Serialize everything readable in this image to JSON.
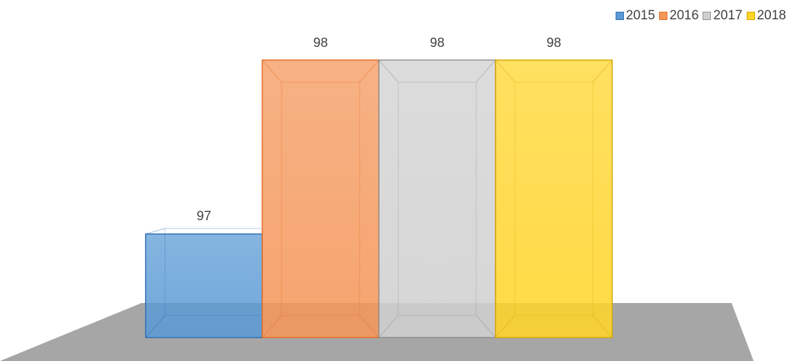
{
  "chart_data": {
    "type": "bar",
    "style": "3d-clustered",
    "categories": [
      ""
    ],
    "series": [
      {
        "name": "2015",
        "values": [
          97
        ],
        "color": "#5B9BD5",
        "stroke": "#2E6DB4"
      },
      {
        "name": "2016",
        "values": [
          98
        ],
        "color": "#F4975A",
        "stroke": "#E46C24"
      },
      {
        "name": "2017",
        "values": [
          98
        ],
        "color": "#D0D0D0",
        "stroke": "#8F8F8F"
      },
      {
        "name": "2018",
        "values": [
          98
        ],
        "color": "#FFD52A",
        "stroke": "#D4A800"
      }
    ],
    "data_labels": [
      "97",
      "98",
      "98",
      "98"
    ],
    "ylim": [
      96,
      98
    ],
    "grid": false,
    "legend_position": "top-right",
    "floor_color": "#A6A6A6"
  }
}
